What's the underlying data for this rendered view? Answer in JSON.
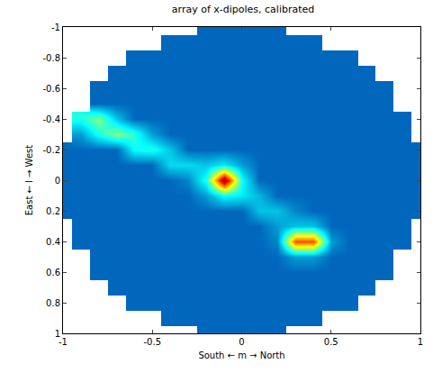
{
  "chart_data": {
    "type": "heatmap",
    "title": "array of x-dipoles, calibrated",
    "x_label": "South ← m → North",
    "y_label": "East ← l → West",
    "x": [
      -1,
      -0.9,
      -0.8,
      -0.7,
      -0.6,
      -0.5,
      -0.4,
      -0.3,
      -0.2,
      -0.1,
      0,
      0.1,
      0.2,
      0.3,
      0.4,
      0.5,
      0.6,
      0.7,
      0.8,
      0.9,
      1
    ],
    "y": [
      -1,
      -0.9,
      -0.8,
      -0.7,
      -0.6,
      -0.5,
      -0.4,
      -0.3,
      -0.2,
      -0.1,
      0,
      0.1,
      0.2,
      0.3,
      0.4,
      0.5,
      0.6,
      0.7,
      0.8,
      0.9,
      1
    ],
    "z": [
      [
        null,
        null,
        null,
        null,
        null,
        null,
        null,
        null,
        0.18,
        0.18,
        0.18,
        0.18,
        0.18,
        null,
        null,
        null,
        null,
        null,
        null,
        null,
        null
      ],
      [
        null,
        null,
        null,
        null,
        null,
        null,
        0.18,
        0.18,
        0.18,
        0.18,
        0.18,
        0.18,
        0.18,
        0.18,
        0.18,
        null,
        null,
        null,
        null,
        null,
        null
      ],
      [
        null,
        null,
        null,
        null,
        0.18,
        0.18,
        0.18,
        0.18,
        0.18,
        0.18,
        0.18,
        0.18,
        0.18,
        0.18,
        0.18,
        0.18,
        0.18,
        null,
        null,
        null,
        null
      ],
      [
        null,
        null,
        null,
        0.18,
        0.18,
        0.18,
        0.18,
        0.18,
        0.18,
        0.18,
        0.18,
        0.18,
        0.18,
        0.18,
        0.18,
        0.18,
        0.18,
        0.18,
        null,
        null,
        null
      ],
      [
        null,
        null,
        0.18,
        0.18,
        0.18,
        0.18,
        0.18,
        0.18,
        0.18,
        0.18,
        0.18,
        0.18,
        0.18,
        0.18,
        0.18,
        0.18,
        0.18,
        0.18,
        0.18,
        null,
        null
      ],
      [
        null,
        null,
        0.18,
        0.18,
        0.18,
        0.18,
        0.18,
        0.18,
        0.18,
        0.18,
        0.18,
        0.18,
        0.18,
        0.18,
        0.18,
        0.18,
        0.18,
        0.18,
        0.18,
        null,
        null
      ],
      [
        null,
        0.4,
        0.5,
        0.3,
        0.18,
        0.18,
        0.18,
        0.18,
        0.18,
        0.18,
        0.18,
        0.18,
        0.18,
        0.18,
        0.18,
        0.18,
        0.18,
        0.18,
        0.18,
        0.18,
        null
      ],
      [
        null,
        0.25,
        0.4,
        0.5,
        0.42,
        0.25,
        0.18,
        0.18,
        0.18,
        0.18,
        0.18,
        0.18,
        0.18,
        0.18,
        0.18,
        0.18,
        0.18,
        0.18,
        0.18,
        0.18,
        null
      ],
      [
        0.18,
        0.18,
        0.18,
        0.18,
        0.38,
        0.4,
        0.3,
        0.18,
        0.18,
        0.18,
        0.18,
        0.18,
        0.18,
        0.18,
        0.18,
        0.18,
        0.18,
        0.18,
        0.18,
        0.18,
        0.18
      ],
      [
        0.18,
        0.18,
        0.18,
        0.18,
        0.18,
        0.18,
        0.33,
        0.33,
        0.3,
        0.35,
        0.25,
        0.18,
        0.18,
        0.18,
        0.18,
        0.18,
        0.18,
        0.18,
        0.18,
        0.18,
        0.18
      ],
      [
        0.18,
        0.18,
        0.18,
        0.18,
        0.18,
        0.18,
        0.18,
        0.22,
        0.4,
        1.0,
        0.38,
        0.18,
        0.18,
        0.18,
        0.18,
        0.18,
        0.18,
        0.18,
        0.18,
        0.18,
        0.18
      ],
      [
        0.18,
        0.18,
        0.18,
        0.18,
        0.18,
        0.18,
        0.18,
        0.18,
        0.25,
        0.38,
        0.35,
        0.28,
        0.18,
        0.18,
        0.18,
        0.18,
        0.18,
        0.18,
        0.18,
        0.18,
        0.18
      ],
      [
        0.18,
        0.18,
        0.18,
        0.18,
        0.18,
        0.18,
        0.18,
        0.18,
        0.18,
        0.18,
        0.18,
        0.3,
        0.3,
        0.22,
        0.18,
        0.18,
        0.18,
        0.18,
        0.18,
        0.18,
        0.18
      ],
      [
        null,
        0.18,
        0.18,
        0.18,
        0.18,
        0.18,
        0.18,
        0.18,
        0.18,
        0.18,
        0.18,
        0.18,
        0.25,
        0.3,
        0.3,
        0.18,
        0.18,
        0.18,
        0.18,
        0.18,
        null
      ],
      [
        null,
        0.18,
        0.18,
        0.18,
        0.18,
        0.18,
        0.18,
        0.18,
        0.18,
        0.18,
        0.18,
        0.18,
        0.22,
        0.8,
        0.8,
        0.25,
        0.18,
        0.18,
        0.18,
        0.18,
        null
      ],
      [
        null,
        null,
        0.18,
        0.18,
        0.18,
        0.18,
        0.18,
        0.18,
        0.18,
        0.18,
        0.18,
        0.18,
        0.18,
        0.25,
        0.25,
        0.18,
        0.18,
        0.18,
        0.18,
        null,
        null
      ],
      [
        null,
        null,
        0.18,
        0.18,
        0.18,
        0.18,
        0.18,
        0.18,
        0.18,
        0.18,
        0.18,
        0.18,
        0.18,
        0.18,
        0.18,
        0.18,
        0.18,
        0.18,
        0.18,
        null,
        null
      ],
      [
        null,
        null,
        null,
        0.18,
        0.18,
        0.18,
        0.18,
        0.18,
        0.18,
        0.18,
        0.18,
        0.18,
        0.18,
        0.18,
        0.18,
        0.18,
        0.18,
        0.18,
        null,
        null,
        null
      ],
      [
        null,
        null,
        null,
        null,
        0.18,
        0.18,
        0.18,
        0.18,
        0.18,
        0.18,
        0.18,
        0.18,
        0.18,
        0.18,
        0.18,
        0.18,
        0.18,
        null,
        null,
        null,
        null
      ],
      [
        null,
        null,
        null,
        null,
        null,
        null,
        0.18,
        0.18,
        0.18,
        0.18,
        0.18,
        0.18,
        0.18,
        0.18,
        0.18,
        null,
        null,
        null,
        null,
        null,
        null
      ],
      [
        null,
        null,
        null,
        null,
        null,
        null,
        null,
        null,
        0.18,
        0.18,
        0.18,
        0.18,
        0.18,
        null,
        null,
        null,
        null,
        null,
        null,
        null,
        null
      ]
    ],
    "zlim": [
      0,
      1
    ],
    "xlim": [
      -1,
      1
    ],
    "ylim": [
      1,
      -1
    ],
    "xticks": [
      -1,
      -0.5,
      0,
      0.5,
      1
    ],
    "yticks": [
      -1,
      -0.8,
      -0.6,
      -0.4,
      -0.2,
      0,
      0.2,
      0.4,
      0.6,
      0.8,
      1
    ],
    "grid": false
  }
}
